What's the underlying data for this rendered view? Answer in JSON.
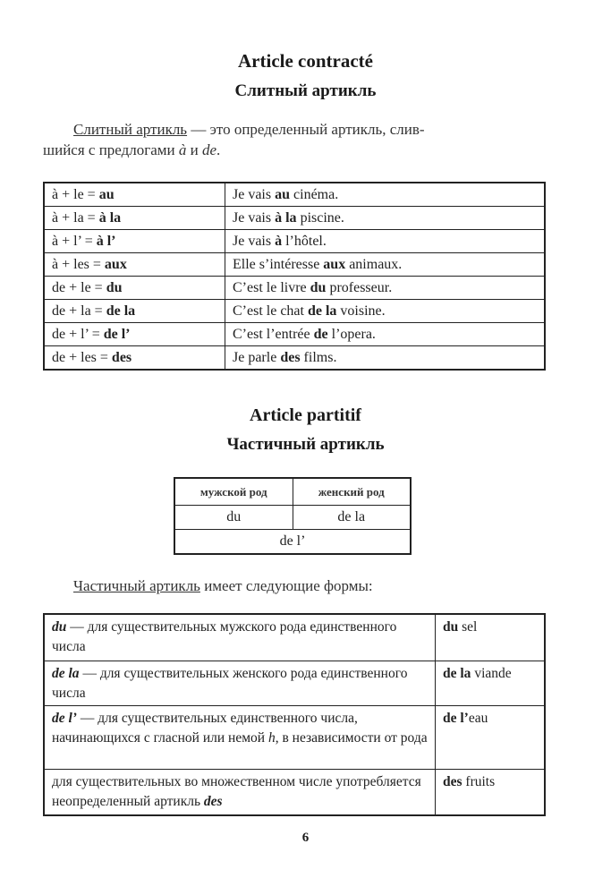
{
  "section1": {
    "title": "Article contracté",
    "subtitle": "Слитный артикль",
    "para": {
      "term": "Слитный артикль",
      "text1": " — это определенный артикль, слив-",
      "text2": "шийся с предлогами ",
      "a": "à",
      "and": " и ",
      "de": "de",
      "end": "."
    },
    "rows": [
      {
        "rule": "à + le = ",
        "result": "au",
        "ex_pre": "Je vais ",
        "ex_bold": "au",
        "ex_post": " cinéma."
      },
      {
        "rule": "à + la = ",
        "result": "à la",
        "ex_pre": "Je vais ",
        "ex_bold": "à la",
        "ex_post": " piscine."
      },
      {
        "rule": "à + l’ = ",
        "result": "à l’",
        "ex_pre": "Je vais ",
        "ex_bold": "à",
        "ex_post": " l’hôtel."
      },
      {
        "rule": "à + les = ",
        "result": "aux",
        "ex_pre": "Elle s’intéresse ",
        "ex_bold": "aux",
        "ex_post": " animaux."
      },
      {
        "rule": "de + le = ",
        "result": "du",
        "ex_pre": "C’est le livre ",
        "ex_bold": "du",
        "ex_post": " professeur."
      },
      {
        "rule": "de + la = ",
        "result": "de la",
        "ex_pre": "C’est le chat ",
        "ex_bold": "de la",
        "ex_post": " voisine."
      },
      {
        "rule": "de + l’ = ",
        "result": "de l’",
        "ex_pre": "C’est l’entrée ",
        "ex_bold": "de",
        "ex_post": " l’opera."
      },
      {
        "rule": "de + les = ",
        "result": "des",
        "ex_pre": "Je parle ",
        "ex_bold": "des",
        "ex_post": " films."
      }
    ]
  },
  "section2": {
    "title": "Article partitif",
    "subtitle": "Частичный артикль",
    "gender_table": {
      "headers": [
        "мужской род",
        "женский род"
      ],
      "row": [
        "du",
        "de la"
      ],
      "merged": "de l’"
    },
    "para": {
      "term": "Частичный артикль",
      "text": " имеет следующие формы:"
    },
    "forms": [
      {
        "form": "du",
        "desc": " — для существительных мужского рода единственного числа",
        "desc_tail": "",
        "ex_bold": "du",
        "ex_post": " sel"
      },
      {
        "form": "de la",
        "desc": " — для существительных женского рода единственного числа",
        "desc_tail": "",
        "ex_bold": "de la",
        "ex_post": " viande"
      },
      {
        "form": "de l’",
        "desc": " — для существительных единственного числа, начинающихся с гласной или немой ",
        "h": "h",
        "desc_tail": ", в независимости от рода",
        "ex_bold": "de l’",
        "ex_post": "eau"
      },
      {
        "form": "",
        "desc": "для существительных во множественном числе употребляется неопределенный артикль ",
        "des": "des",
        "desc_tail": "",
        "ex_bold": "des",
        "ex_post": " fruits"
      }
    ]
  },
  "page_number": "6"
}
